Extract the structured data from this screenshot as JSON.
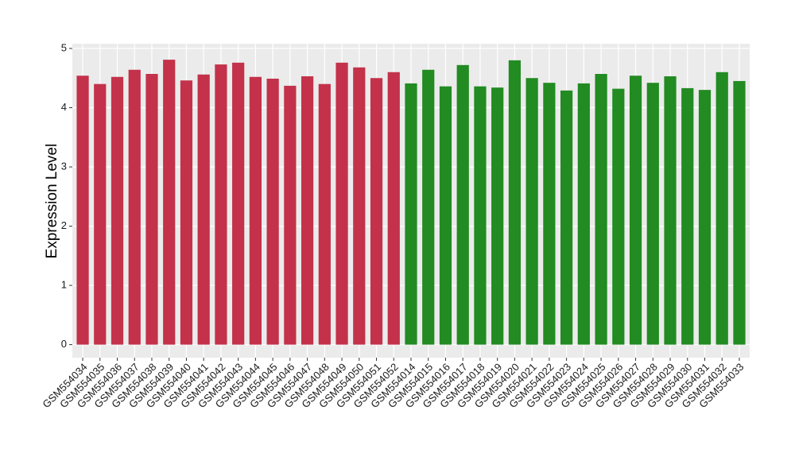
{
  "chart_data": {
    "type": "bar",
    "y_label": "Expression Level",
    "categories": [
      "GSM554034",
      "GSM554035",
      "GSM554036",
      "GSM554037",
      "GSM554038",
      "GSM554039",
      "GSM554040",
      "GSM554041",
      "GSM554042",
      "GSM554043",
      "GSM554044",
      "GSM554045",
      "GSM554046",
      "GSM554047",
      "GSM554048",
      "GSM554049",
      "GSM554050",
      "GSM554051",
      "GSM554052",
      "GSM554014",
      "GSM554015",
      "GSM554016",
      "GSM554017",
      "GSM554018",
      "GSM554019",
      "GSM554020",
      "GSM554021",
      "GSM554022",
      "GSM554023",
      "GSM554024",
      "GSM554025",
      "GSM554026",
      "GSM554027",
      "GSM554028",
      "GSM554029",
      "GSM554030",
      "GSM554031",
      "GSM554032",
      "GSM554033"
    ],
    "values": [
      4.54,
      4.4,
      4.52,
      4.64,
      4.57,
      4.81,
      4.46,
      4.56,
      4.73,
      4.76,
      4.52,
      4.49,
      4.37,
      4.53,
      4.4,
      4.76,
      4.68,
      4.5,
      4.6,
      4.41,
      4.64,
      4.36,
      4.72,
      4.36,
      4.34,
      4.8,
      4.5,
      4.42,
      4.29,
      4.41,
      4.57,
      4.32,
      4.54,
      4.42,
      4.53,
      4.33,
      4.3,
      4.6,
      4.45
    ],
    "colors": [
      "#c3324a",
      "#c3324a",
      "#c3324a",
      "#c3324a",
      "#c3324a",
      "#c3324a",
      "#c3324a",
      "#c3324a",
      "#c3324a",
      "#c3324a",
      "#c3324a",
      "#c3324a",
      "#c3324a",
      "#c3324a",
      "#c3324a",
      "#c3324a",
      "#c3324a",
      "#c3324a",
      "#c3324a",
      "#228b22",
      "#228b22",
      "#228b22",
      "#228b22",
      "#228b22",
      "#228b22",
      "#228b22",
      "#228b22",
      "#228b22",
      "#228b22",
      "#228b22",
      "#228b22",
      "#228b22",
      "#228b22",
      "#228b22",
      "#228b22",
      "#228b22",
      "#228b22",
      "#228b22",
      "#228b22"
    ],
    "ylim": [
      -0.22,
      5.08
    ],
    "yticks": [
      0,
      1,
      2,
      3,
      4,
      5
    ],
    "grid": true,
    "panel_color": "#ebebeb"
  }
}
